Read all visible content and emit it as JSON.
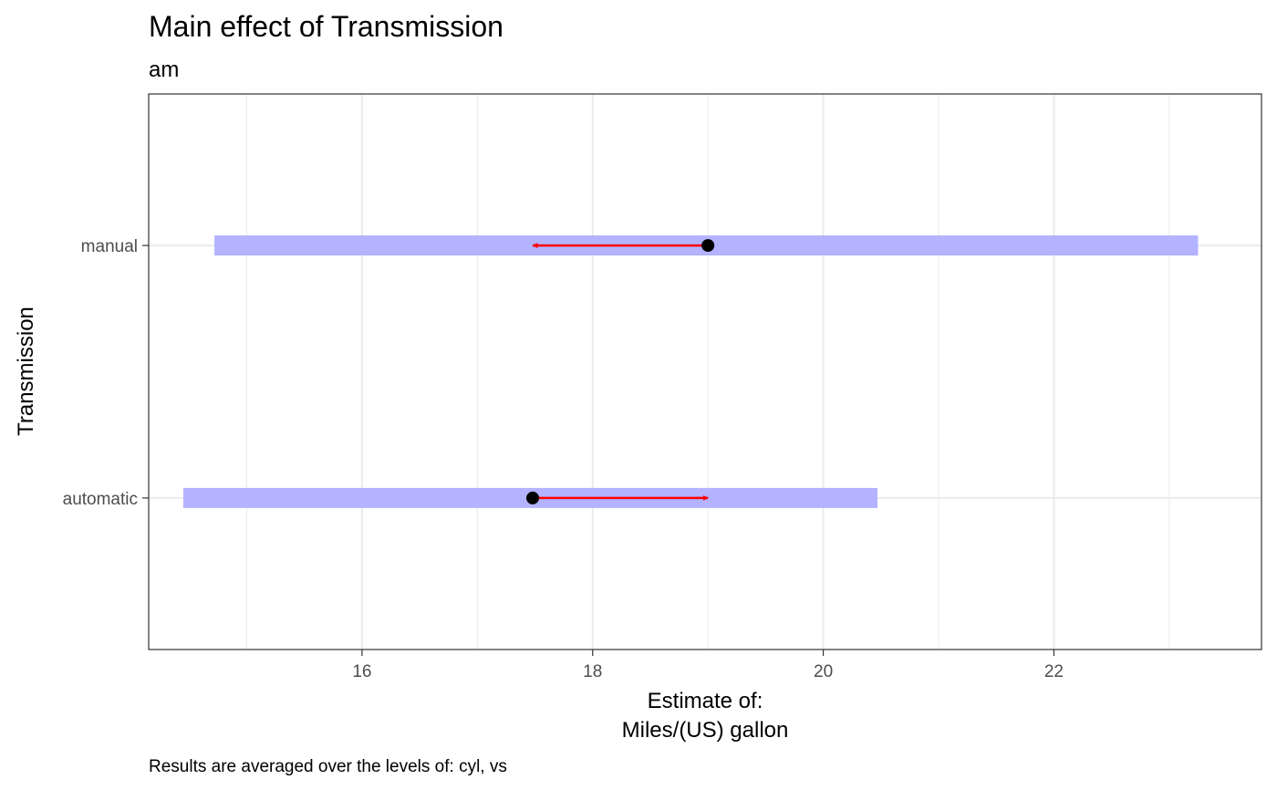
{
  "chart_data": {
    "type": "interval",
    "title": "Main effect of Transmission",
    "subtitle": "am",
    "xlabel_lines": [
      "Estimate of:",
      "Miles/(US) gallon"
    ],
    "ylabel": "Transmission",
    "caption": "Results are averaged over the levels of: cyl, vs",
    "xlim": [
      14.15,
      23.8
    ],
    "x_ticks": [
      16,
      18,
      20,
      22
    ],
    "x_tick_labels": [
      "16",
      "18",
      "20",
      "22"
    ],
    "grid": true,
    "categories": [
      "automatic",
      "manual"
    ],
    "estimates": [
      {
        "level": "automatic",
        "estimate": 17.48,
        "ci_lower": 14.45,
        "ci_upper": 20.47,
        "arrow_to": 19.0
      },
      {
        "level": "manual",
        "estimate": 19.0,
        "ci_lower": 14.72,
        "ci_upper": 23.25,
        "arrow_to": 17.48
      }
    ],
    "colors": {
      "ci_band": "#b3b3ff",
      "arrow": "#ff0000",
      "point": "#000000",
      "gridline": "#ebebeb",
      "panel_border": "#333333"
    }
  }
}
